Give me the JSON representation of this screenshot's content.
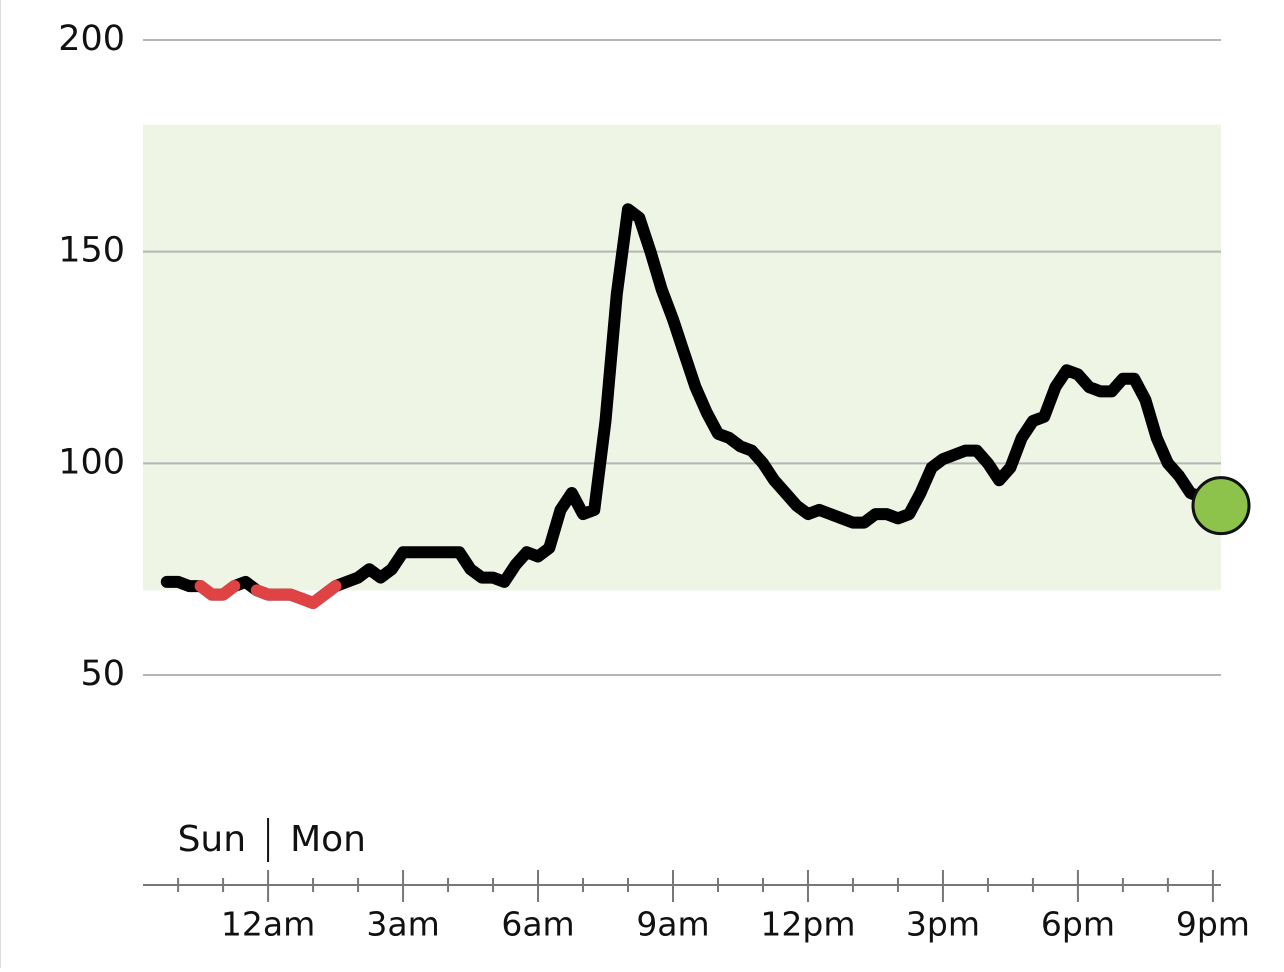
{
  "chart_data": {
    "type": "line",
    "x": [
      -2.25,
      -2,
      -1.75,
      -1.5,
      -1.25,
      -1,
      -0.75,
      -0.5,
      -0.25,
      0,
      0.25,
      0.5,
      0.75,
      1,
      1.25,
      1.5,
      1.75,
      2,
      2.25,
      2.5,
      2.75,
      3,
      3.25,
      3.5,
      3.75,
      4,
      4.25,
      4.5,
      4.75,
      5,
      5.25,
      5.5,
      5.75,
      6,
      6.25,
      6.5,
      6.75,
      7,
      7.25,
      7.5,
      7.75,
      8,
      8.25,
      8.5,
      8.75,
      9,
      9.25,
      9.5,
      9.75,
      10,
      10.25,
      10.5,
      10.75,
      11,
      11.25,
      11.5,
      11.75,
      12,
      12.25,
      12.5,
      12.75,
      13,
      13.25,
      13.5,
      13.75,
      14,
      14.25,
      14.5,
      14.75,
      15,
      15.25,
      15.5,
      15.75,
      16,
      16.25,
      16.5,
      16.75,
      17,
      17.25,
      17.5,
      17.75,
      18,
      18.25,
      18.5,
      18.75,
      19,
      19.25,
      19.5,
      19.75,
      20,
      20.25,
      20.5,
      20.75,
      21,
      21.18
    ],
    "values": [
      72,
      72,
      71,
      71,
      69,
      69,
      71,
      72,
      70,
      69,
      69,
      69,
      68,
      67,
      69,
      71,
      72,
      73,
      75,
      73,
      75,
      79,
      79,
      79,
      79,
      79,
      79,
      75,
      73,
      73,
      72,
      76,
      79,
      78,
      80,
      89,
      93,
      88,
      89,
      110,
      140,
      160,
      158,
      150,
      141,
      134,
      126,
      118,
      112,
      107,
      106,
      104,
      103,
      100,
      96,
      93,
      90,
      88,
      89,
      88,
      87,
      86,
      86,
      88,
      88,
      87,
      88,
      93,
      99,
      101,
      102,
      103,
      103,
      100,
      96,
      99,
      106,
      110,
      111,
      118,
      122,
      121,
      118,
      117,
      117,
      120,
      120,
      115,
      106,
      100,
      97,
      93,
      92,
      91,
      90
    ],
    "color": "#000000",
    "low_color": "#e04343",
    "current_marker_color": "#8dc34a",
    "target_range": [
      70,
      180
    ],
    "target_range_color": "#eef5e5",
    "ylim": [
      50,
      200
    ],
    "yticks": [
      50,
      100,
      150,
      200
    ],
    "xlim": [
      -2.78,
      21.18
    ],
    "xticks": [
      {
        "value": 0,
        "label": "12am"
      },
      {
        "value": 3,
        "label": "3am"
      },
      {
        "value": 6,
        "label": "6am"
      },
      {
        "value": 9,
        "label": "9am"
      },
      {
        "value": 12,
        "label": "12pm"
      },
      {
        "value": 15,
        "label": "3pm"
      },
      {
        "value": 18,
        "label": "6pm"
      },
      {
        "value": 21,
        "label": "9pm"
      }
    ],
    "x_minor_ticks": [
      -2,
      -1,
      1,
      2,
      4,
      5,
      7,
      8,
      10,
      11,
      13,
      14,
      16,
      17,
      19,
      20
    ],
    "day_divider": {
      "x": 0,
      "before": "Sun",
      "after": "Mon"
    },
    "grid": true
  }
}
